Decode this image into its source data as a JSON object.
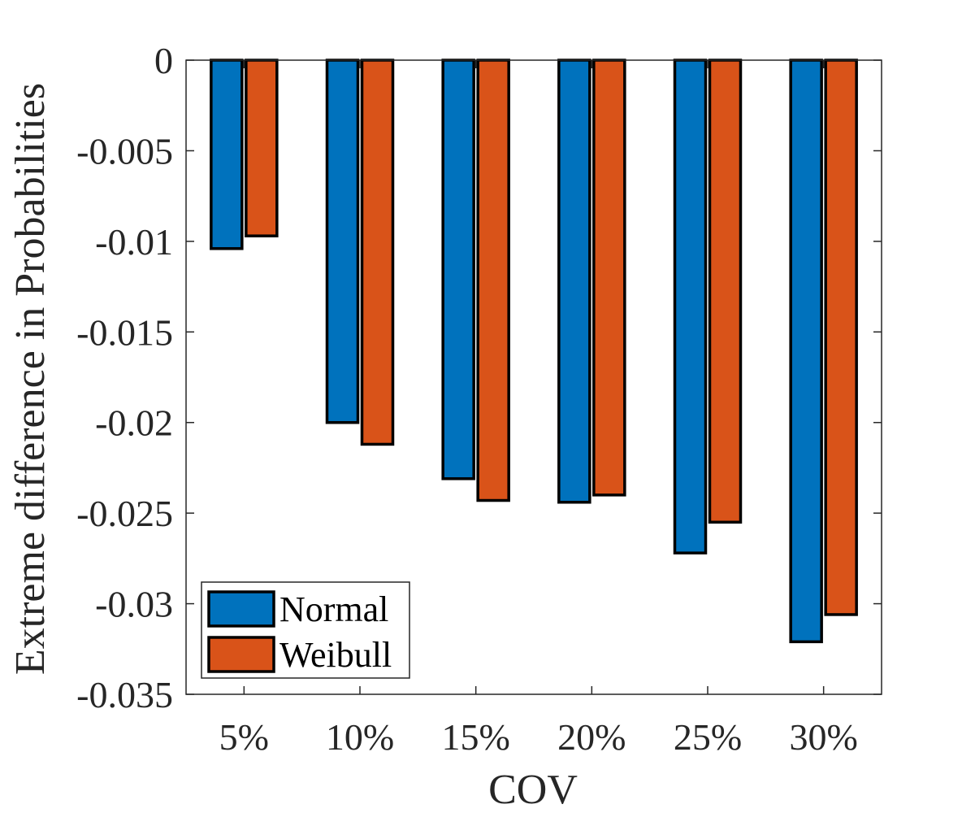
{
  "chart_data": {
    "type": "bar",
    "title": "",
    "xlabel": "COV",
    "ylabel": "Extreme difference in Probabilities",
    "categories": [
      "5%",
      "10%",
      "15%",
      "20%",
      "25%",
      "30%"
    ],
    "series": [
      {
        "name": "Normal",
        "color": "#0072BD",
        "values": [
          -0.0104,
          -0.02,
          -0.0231,
          -0.0244,
          -0.0272,
          -0.0321
        ]
      },
      {
        "name": "Weibull",
        "color": "#D95319",
        "values": [
          -0.0097,
          -0.0212,
          -0.0243,
          -0.024,
          -0.0255,
          -0.0306
        ]
      }
    ],
    "ylim": [
      -0.035,
      0
    ],
    "yticks": [
      0,
      -0.005,
      -0.01,
      -0.015,
      -0.02,
      -0.025,
      -0.03,
      -0.035
    ],
    "ytick_labels": [
      "0",
      "-0.005",
      "-0.01",
      "-0.015",
      "-0.02",
      "-0.025",
      "-0.03",
      "-0.035"
    ],
    "grid": false,
    "legend_position": "bottom-left"
  }
}
